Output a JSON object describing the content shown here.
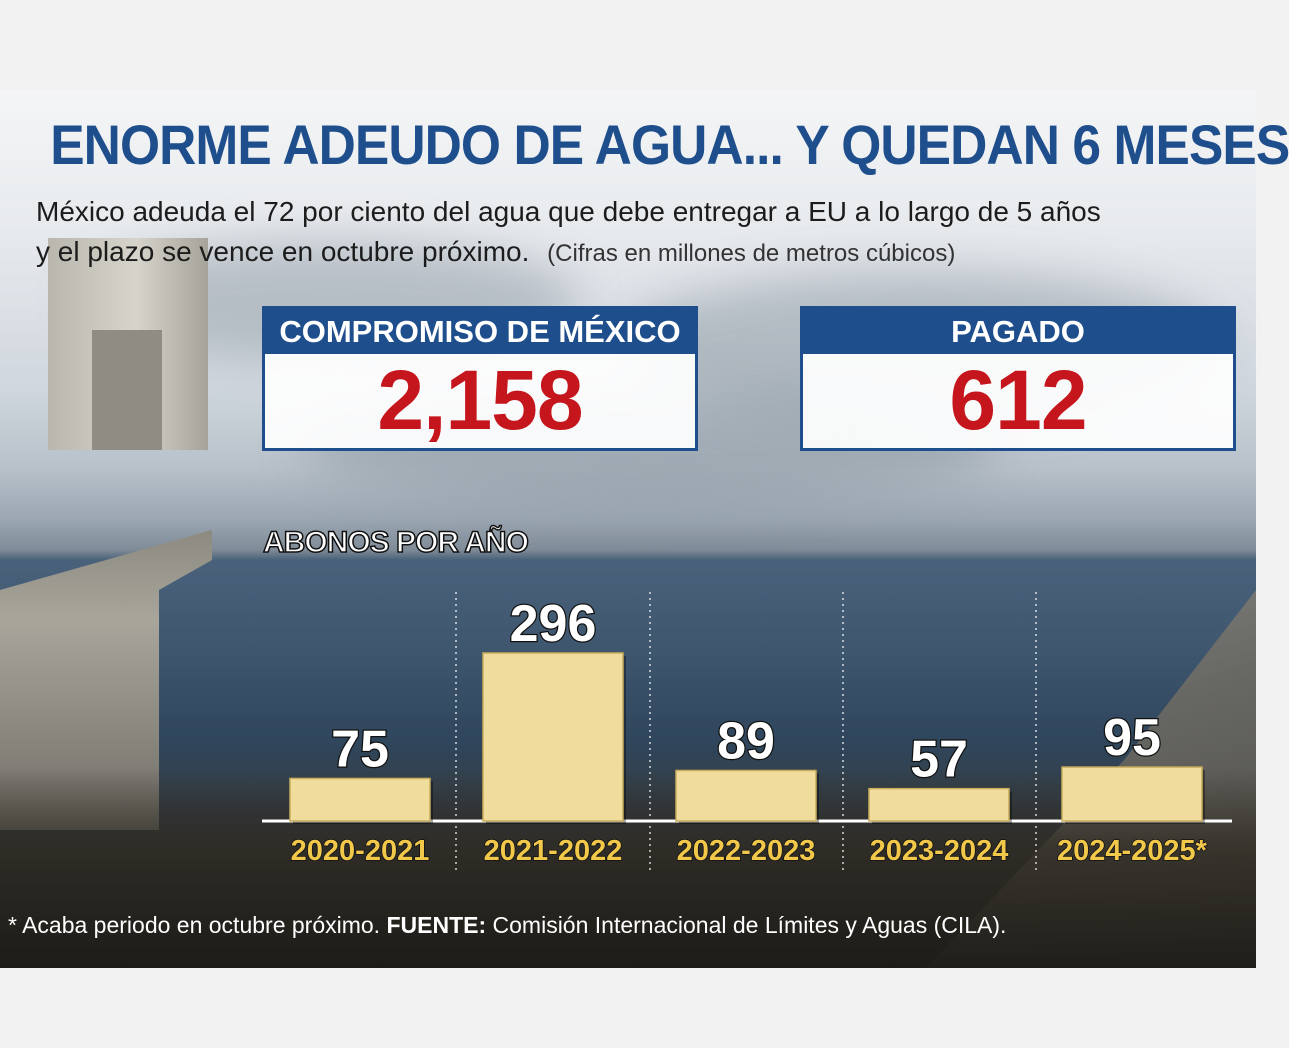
{
  "title": "ENORME ADEUDO DE AGUA... Y QUEDAN 6 MESES",
  "subtitle": {
    "line1": "México adeuda el 72 por ciento del agua que debe entregar a EU a lo largo de 5 años",
    "line2": "y el plazo se vence en octubre próximo.",
    "note": "(Cifras en millones de metros cúbicos)"
  },
  "boxes": {
    "commitment": {
      "label": "COMPROMISO DE MÉXICO",
      "value": "2,158"
    },
    "paid": {
      "label": "PAGADO",
      "value": "612"
    }
  },
  "footnote": {
    "note": "* Acaba periodo en octubre próximo.",
    "source_label": "FUENTE:",
    "source": "Comisión Internacional de Límites y Aguas (CILA)."
  },
  "colors": {
    "title_blue": "#1f4e8c",
    "value_red": "#c4161c",
    "bar_gold": "#f0dc9c",
    "tick_gold": "#f2c84b"
  },
  "chart_data": {
    "type": "bar",
    "title": "ABONOS POR AÑO",
    "categories": [
      "2020-2021",
      "2021-2022",
      "2022-2023",
      "2023-2024",
      "2024-2025*"
    ],
    "values": [
      75,
      296,
      89,
      57,
      95
    ],
    "ylim": [
      0,
      296
    ],
    "grid": false,
    "legend": "none"
  }
}
